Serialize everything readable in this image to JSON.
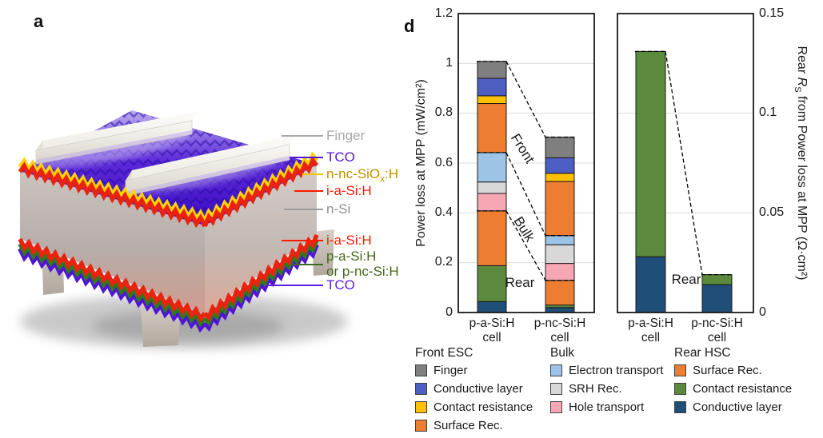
{
  "panel_a": {
    "label": "a",
    "labels": [
      {
        "text": "Finger",
        "color": "#A9A9A9",
        "line_color": "#A9A9A9"
      },
      {
        "text": "TCO",
        "color": "#5215D6",
        "line_color": "#5215D6"
      },
      {
        "pre": "n-nc-SiO",
        "sub": "x",
        "post": ":H",
        "color": "#BF9000",
        "line_color": "#F2C500"
      },
      {
        "text": "i-a-Si:H",
        "color": "#FF1A00",
        "line_color": "#FF1A00"
      },
      {
        "text": "n-Si",
        "color": "#8E8E8E",
        "line_color": "#9C9C9C"
      },
      {
        "text": "i-a-Si:H",
        "color": "#FF1A00",
        "line_color": "#FF1A00"
      },
      {
        "text": "p-a-Si:H",
        "color": "#47661D"
      },
      {
        "text": "or p-nc-Si:H",
        "color": "#47661D",
        "line_color": "#3F6B1E"
      },
      {
        "text": "TCO",
        "color": "#5B1EE6",
        "line_color": "#5B1EE6"
      }
    ],
    "structure_colors": {
      "tco_violet": "#4F14D8",
      "n_layer_yellow": "#FFD400",
      "i_layer_red": "#E8230F",
      "p_layer_green": "#2F7A1B",
      "body_top": "#CAC3BE",
      "body_mid": "#B6ADA9",
      "body_bottom": "#D09B8D",
      "top_face_dark": "#3A0EC2",
      "top_face_mid": "#5B28D8",
      "top_face_light": "#BCAEEF",
      "finger_ivory": "#F6F3EE"
    }
  },
  "panel_d": {
    "label": "d",
    "axis1_title": "Power loss at MPP (mW/cm²)",
    "axis2_title": {
      "pre": "Rear ",
      "italic": "R",
      "sub": "S",
      "post": " from Power loss at MPP (Ω·cm²)"
    }
  },
  "chart_data": [
    {
      "type": "stacked-bar",
      "ylabel": "Power loss at MPP (mW/cm²)",
      "ylim": [
        0,
        1.2
      ],
      "grid": true,
      "yticks": [
        {
          "v": 0,
          "label": "0"
        },
        {
          "v": 0.2,
          "label": "0.2"
        },
        {
          "v": 0.4,
          "label": "0.4"
        },
        {
          "v": 0.6,
          "label": "0.6"
        },
        {
          "v": 0.8,
          "label": "0.8"
        },
        {
          "v": 1,
          "label": "1"
        },
        {
          "v": 1.2,
          "label": "1.2"
        }
      ],
      "categories": [
        [
          "p-a-Si:H",
          "cell"
        ],
        [
          "p-nc-Si:H",
          "cell"
        ]
      ],
      "series": [
        {
          "group": "Rear HSC",
          "name": "Conductive layer",
          "color": "#1F4E79",
          "values": [
            0.044,
            0.02
          ]
        },
        {
          "group": "Rear HSC",
          "name": "Contact resistance",
          "color": "#5B8A3C",
          "values": [
            0.144,
            0.01
          ]
        },
        {
          "group": "Rear HSC",
          "name": "Surface Rec.",
          "color": "#ED7D31",
          "values": [
            0.22,
            0.099
          ]
        },
        {
          "group": "Bulk",
          "name": "Hole transport",
          "color": "#F7A6B3",
          "values": [
            0.07,
            0.068
          ]
        },
        {
          "group": "Bulk",
          "name": "SRH Rec.",
          "color": "#D8D8D8",
          "values": [
            0.046,
            0.075
          ]
        },
        {
          "group": "Bulk",
          "name": "Electron transport",
          "color": "#9DC3E6",
          "values": [
            0.118,
            0.037
          ]
        },
        {
          "group": "Front ESC",
          "name": "Surface Rec.",
          "color": "#ED7D31",
          "values": [
            0.197,
            0.217
          ]
        },
        {
          "group": "Front ESC",
          "name": "Contact resistance",
          "color": "#FFC000",
          "values": [
            0.031,
            0.033
          ]
        },
        {
          "group": "Front ESC",
          "name": "Conductive layer",
          "color": "#4C5EC2",
          "values": [
            0.07,
            0.062
          ]
        },
        {
          "group": "Front ESC",
          "name": "Finger",
          "color": "#7F7F7F",
          "values": [
            0.068,
            0.083
          ]
        }
      ],
      "group_boundaries": [
        3,
        6,
        10
      ],
      "annotations": [
        {
          "text": "Front"
        },
        {
          "text": "Bulk"
        },
        {
          "text": "Rear"
        }
      ]
    },
    {
      "type": "stacked-bar",
      "ylabel": "Rear Rs from Power loss at MPP (Ω·cm²)",
      "ylim": [
        0,
        0.15
      ],
      "grid": true,
      "yticks": [
        {
          "v": 0,
          "label": "0"
        },
        {
          "v": 0.05,
          "label": "0.05"
        },
        {
          "v": 0.1,
          "label": "0.1"
        },
        {
          "v": 0.15,
          "label": "0.15"
        }
      ],
      "categories": [
        [
          "p-a-Si:H",
          "cell"
        ],
        [
          "p-nc-Si:H",
          "cell"
        ]
      ],
      "series": [
        {
          "group": "Rear HSC",
          "name": "Conductive layer",
          "color": "#1F4E79",
          "values": [
            0.028,
            0.014
          ]
        },
        {
          "group": "Rear HSC",
          "name": "Contact resistance",
          "color": "#5B8A3C",
          "values": [
            0.103,
            0.005
          ]
        }
      ],
      "group_boundaries": [
        2
      ],
      "annotations": [
        {
          "text": "Rear"
        }
      ]
    }
  ],
  "legend": {
    "columns": [
      {
        "title": "Front ESC",
        "items": [
          {
            "label": "Finger",
            "color": "#7F7F7F"
          },
          {
            "label": "Conductive layer",
            "color": "#4C5EC2"
          },
          {
            "label": "Contact resistance",
            "color": "#FFC000"
          },
          {
            "label": "Surface Rec.",
            "color": "#ED7D31"
          }
        ]
      },
      {
        "title": "Bulk",
        "items": [
          {
            "label": "Electron transport",
            "color": "#9DC3E6"
          },
          {
            "label": "SRH Rec.",
            "color": "#D8D8D8"
          },
          {
            "label": "Hole transport",
            "color": "#F7A6B3"
          }
        ]
      },
      {
        "title": "Rear HSC",
        "items": [
          {
            "label": "Surface Rec.",
            "color": "#ED7D31"
          },
          {
            "label": "Contact resistance",
            "color": "#5B8A3C"
          },
          {
            "label": "Conductive layer",
            "color": "#1F4E79"
          }
        ]
      }
    ]
  }
}
